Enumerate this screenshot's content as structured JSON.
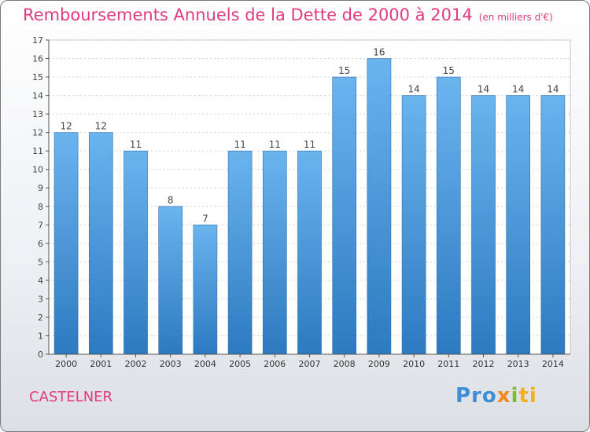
{
  "title": "Remboursements Annuels de la Dette de 2000 à 2014",
  "subtitle": "(en milliers d'€)",
  "city": "CASTELNER",
  "logo": {
    "part1": "Pro",
    "part2": "x",
    "part3": "i",
    "part4": "ti"
  },
  "colors": {
    "title": "#e13a80",
    "bar_light": "#6ab4ee",
    "bar_dark": "#2d7ac0",
    "axis": "#555555",
    "grid": "#cfd3d8"
  },
  "chart_data": {
    "type": "bar",
    "categories": [
      "2000",
      "2001",
      "2002",
      "2003",
      "2004",
      "2005",
      "2006",
      "2007",
      "2008",
      "2009",
      "2010",
      "2011",
      "2012",
      "2013",
      "2014"
    ],
    "values": [
      12,
      12,
      11,
      8,
      7,
      11,
      11,
      11,
      15,
      16,
      14,
      15,
      14,
      14,
      14
    ],
    "title": "Remboursements Annuels de la Dette de 2000 à 2014",
    "subtitle": "(en milliers d'€)",
    "xlabel": "",
    "ylabel": "",
    "ylim": [
      0,
      17
    ],
    "yticks": [
      0,
      1,
      2,
      3,
      4,
      5,
      6,
      7,
      8,
      9,
      10,
      11,
      12,
      13,
      14,
      15,
      16,
      17
    ],
    "grid": true,
    "data_labels": true
  }
}
